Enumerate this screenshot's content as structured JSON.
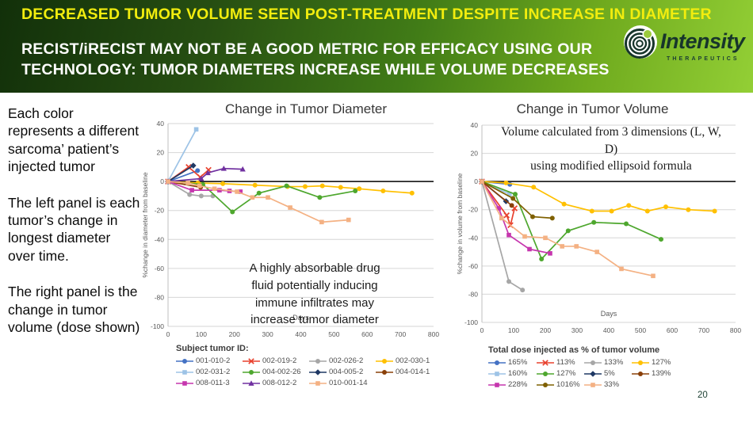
{
  "header": {
    "title": "DECREASED TUMOR VOLUME SEEN POST-TREATMENT DESPITE INCREASE IN DIAMETER",
    "subtitle": "RECIST/iRECIST MAY NOT BE A GOOD METRIC FOR EFFICACY USING OUR\nTECHNOLOGY:  TUMOR DIAMETERS INCREASE WHILE VOLUME DECREASES",
    "title_color": "#f2ed0e",
    "logo": {
      "name": "Intensity",
      "sub": "THERAPEUTICS",
      "dot_color": "#9bca3c"
    }
  },
  "sidebar": {
    "paragraphs": [
      "Each color represents a different sarcoma’ patient’s injected tumor",
      "The left panel is each tumor’s change in longest diameter over time.",
      "The right panel is the change in tumor volume (dose shown)"
    ]
  },
  "page_number": "20",
  "chart_data": [
    {
      "type": "line",
      "title": "Change in Tumor Diameter",
      "xlabel": "Days",
      "ylabel": "%change in diameter from baseline",
      "xlim": [
        0,
        800
      ],
      "xstep": 100,
      "ylim": [
        -100,
        40
      ],
      "ystep": 20,
      "grid": true,
      "legend_position": "bottom",
      "legend_title": "Subject tumor ID:",
      "annotation": "A highly absorbable drug\nfluid potentially inducing\nimmune infiltrates may\nincrease tumor diameter",
      "series": [
        {
          "name": "001-010-2",
          "color": "#4472C4",
          "marker": "circle",
          "points": [
            [
              0,
              0
            ],
            [
              89,
              7.5
            ]
          ]
        },
        {
          "name": "002-019-2",
          "color": "#E8402D",
          "marker": "x",
          "points": [
            [
              0,
              0
            ],
            [
              62,
              10
            ],
            [
              97,
              3
            ],
            [
              122,
              8
            ]
          ]
        },
        {
          "name": "002-026-2",
          "color": "#A6A6A6",
          "marker": "circle",
          "points": [
            [
              0,
              0
            ],
            [
              65,
              -9
            ],
            [
              100,
              -10
            ],
            [
              135,
              -10
            ]
          ]
        },
        {
          "name": "002-030-1",
          "color": "#FFC000",
          "marker": "circle",
          "points": [
            [
              0,
              0
            ],
            [
              90,
              -1
            ],
            [
              165,
              -1.5
            ],
            [
              262,
              -2.5
            ],
            [
              360,
              -3.5
            ],
            [
              413,
              -3.5
            ],
            [
              465,
              -3
            ],
            [
              520,
              -4
            ],
            [
              576,
              -5
            ],
            [
              648,
              -6.5
            ],
            [
              735,
              -8
            ]
          ]
        },
        {
          "name": "002-031-2",
          "color": "#9DC3E6",
          "marker": "square",
          "points": [
            [
              0,
              0
            ],
            [
              85,
              36
            ]
          ]
        },
        {
          "name": "004-002-26",
          "color": "#4EA72E",
          "marker": "circle",
          "points": [
            [
              0,
              0
            ],
            [
              105,
              -2
            ],
            [
              194,
              -21
            ],
            [
              274,
              -8
            ],
            [
              357,
              -3
            ],
            [
              457,
              -11
            ],
            [
              564,
              -6.5
            ]
          ]
        },
        {
          "name": "004-005-2",
          "color": "#1F3864",
          "marker": "diamond",
          "points": [
            [
              0,
              0
            ],
            [
              76,
              11
            ]
          ]
        },
        {
          "name": "004-014-1",
          "color": "#8A4009",
          "marker": "circle",
          "points": [
            [
              0,
              0
            ],
            [
              98,
              -4
            ]
          ]
        },
        {
          "name": "008-011-3",
          "color": "#C636AE",
          "marker": "square",
          "points": [
            [
              0,
              0
            ],
            [
              72,
              -6
            ],
            [
              155,
              -6
            ],
            [
              185,
              -6.5
            ],
            [
              218,
              -7
            ]
          ]
        },
        {
          "name": "008-012-2",
          "color": "#7030A0",
          "marker": "triangle",
          "points": [
            [
              0,
              0
            ],
            [
              100,
              2
            ],
            [
              120,
              6
            ],
            [
              168,
              9
            ],
            [
              225,
              8.5
            ]
          ]
        },
        {
          "name": "010-001-14",
          "color": "#F4B183",
          "marker": "square",
          "points": [
            [
              0,
              0
            ],
            [
              60,
              -1
            ],
            [
              95,
              -3
            ],
            [
              140,
              -5
            ],
            [
              208,
              -7
            ],
            [
              254,
              -11
            ],
            [
              301,
              -11
            ],
            [
              368,
              -18
            ],
            [
              463,
              -28
            ],
            [
              544,
              -26.5
            ]
          ]
        }
      ]
    },
    {
      "type": "line",
      "title": "Change in Tumor Volume",
      "xlabel": "Days",
      "ylabel": "%change in volume from baseline",
      "xlim": [
        0,
        800
      ],
      "xstep": 100,
      "ylim": [
        -100,
        40
      ],
      "ystep": 20,
      "grid": true,
      "legend_position": "bottom",
      "legend_title": "Total dose injected as % of tumor volume",
      "annotation": "Volume calculated from 3 dimensions (L, W, D)\nusing modified ellipsoid formula",
      "series": [
        {
          "name": "165%",
          "color": "#4472C4",
          "marker": "circle",
          "points": [
            [
              0,
              0
            ],
            [
              88,
              -2
            ]
          ]
        },
        {
          "name": "113%",
          "color": "#E8402D",
          "marker": "x",
          "points": [
            [
              0,
              0
            ],
            [
              78,
              -24
            ],
            [
              90,
              -31
            ],
            [
              103,
              -19
            ]
          ]
        },
        {
          "name": "133%",
          "color": "#A6A6A6",
          "marker": "circle",
          "points": [
            [
              0,
              0
            ],
            [
              85,
              -71
            ],
            [
              128,
              -77
            ]
          ]
        },
        {
          "name": "127%",
          "color": "#FFC000",
          "marker": "circle",
          "points": [
            [
              0,
              0
            ],
            [
              76,
              -1
            ],
            [
              163,
              -4
            ],
            [
              259,
              -16
            ],
            [
              347,
              -21
            ],
            [
              409,
              -21
            ],
            [
              463,
              -17
            ],
            [
              522,
              -21
            ],
            [
              580,
              -18
            ],
            [
              651,
              -20
            ],
            [
              734,
              -21
            ]
          ]
        },
        {
          "name": "160%",
          "color": "#9DC3E6",
          "marker": "square",
          "points": [
            [
              0,
              0
            ],
            [
              87,
              -9
            ]
          ]
        },
        {
          "name": "127%",
          "color": "#4EA72E",
          "marker": "circle",
          "points": [
            [
              0,
              0
            ],
            [
              105,
              -9
            ],
            [
              188,
              -55
            ],
            [
              272,
              -35
            ],
            [
              353,
              -29
            ],
            [
              455,
              -30
            ],
            [
              565,
              -41
            ]
          ]
        },
        {
          "name": "5%",
          "color": "#1F3864",
          "marker": "diamond",
          "points": [
            [
              0,
              0
            ],
            [
              76,
              -14
            ]
          ]
        },
        {
          "name": "139%",
          "color": "#8A4009",
          "marker": "circle",
          "points": [
            [
              0,
              0
            ],
            [
              94,
              -17
            ]
          ]
        },
        {
          "name": "228%",
          "color": "#C636AE",
          "marker": "square",
          "points": [
            [
              0,
              0
            ],
            [
              53,
              -19
            ],
            [
              85,
              -38
            ],
            [
              150,
              -48
            ],
            [
              215,
              -51
            ]
          ]
        },
        {
          "name": "1016%",
          "color": "#7F6000",
          "marker": "circle",
          "points": [
            [
              0,
              0
            ],
            [
              98,
              -12
            ],
            [
              160,
              -25
            ],
            [
              222,
              -26
            ]
          ]
        },
        {
          "name": "33%",
          "color": "#F4B183",
          "marker": "square",
          "points": [
            [
              0,
              0
            ],
            [
              62,
              -26
            ],
            [
              135,
              -39
            ],
            [
              200,
              -40
            ],
            [
              253,
              -46
            ],
            [
              298,
              -46
            ],
            [
              363,
              -50
            ],
            [
              440,
              -62
            ],
            [
              540,
              -67
            ]
          ]
        }
      ]
    }
  ]
}
